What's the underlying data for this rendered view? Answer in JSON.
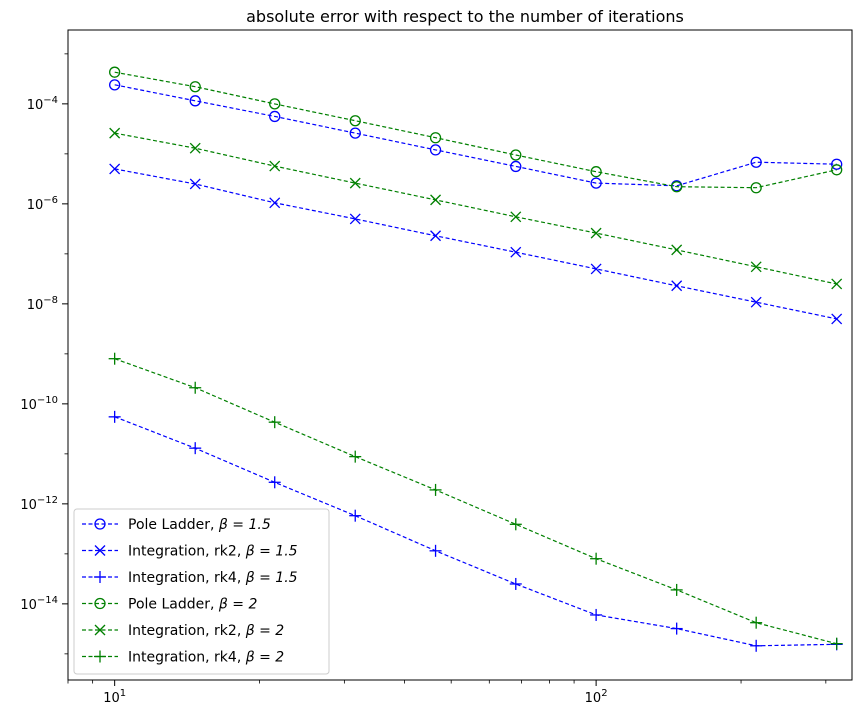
{
  "chart_data": {
    "type": "line",
    "title": "absolute error with respect to the number of iterations",
    "xlabel": "",
    "ylabel": "",
    "xscale": "log",
    "yscale": "log",
    "xlim": [
      8.0,
      340
    ],
    "ylim": [
      3e-16,
      0.003
    ],
    "xticks": [
      10,
      100
    ],
    "xtick_labels": [
      {
        "base": "10",
        "exp": "1"
      },
      {
        "base": "10",
        "exp": "2"
      }
    ],
    "yticks": [
      1e-14,
      1e-12,
      1e-10,
      1e-08,
      1e-06,
      0.0001
    ],
    "ytick_labels": [
      {
        "base": "10",
        "exp": "−14"
      },
      {
        "base": "10",
        "exp": "−12"
      },
      {
        "base": "10",
        "exp": "−10"
      },
      {
        "base": "10",
        "exp": "−8"
      },
      {
        "base": "10",
        "exp": "−6"
      },
      {
        "base": "10",
        "exp": "−4"
      }
    ],
    "grid": false,
    "legend_position": "lower-left",
    "x": [
      10,
      14.7,
      21.5,
      31.6,
      46.4,
      68.1,
      100,
      147,
      215,
      316
    ],
    "series": [
      {
        "name": "Pole Ladder, ",
        "beta_label": "β = 1.5",
        "color": "#0000ff",
        "marker": "circle",
        "values": [
          0.00024,
          0.000115,
          5.6e-05,
          2.6e-05,
          1.2e-05,
          5.6e-06,
          2.6e-06,
          2.3e-06,
          6.8e-06,
          6.2e-06
        ]
      },
      {
        "name": "Integration, rk2, ",
        "beta_label": "β = 1.5",
        "color": "#0000ff",
        "marker": "x",
        "values": [
          5e-06,
          2.5e-06,
          1.05e-06,
          5e-07,
          2.3e-07,
          1.08e-07,
          5e-08,
          2.3e-08,
          1.08e-08,
          5e-09
        ]
      },
      {
        "name": "Integration, rk4, ",
        "beta_label": "β = 1.5",
        "color": "#0000ff",
        "marker": "plus",
        "values": [
          5.5e-11,
          1.3e-11,
          2.7e-12,
          5.8e-13,
          1.15e-13,
          2.5e-14,
          6e-15,
          3.2e-15,
          1.45e-15,
          1.55e-15
        ]
      },
      {
        "name": "Pole Ladder, ",
        "beta_label": "β = 2",
        "color": "#008000",
        "marker": "circle",
        "values": [
          0.00043,
          0.00022,
          0.0001,
          4.6e-05,
          2.1e-05,
          9.5e-06,
          4.4e-06,
          2.2e-06,
          2.1e-06,
          4.8e-06
        ]
      },
      {
        "name": "Integration, rk2, ",
        "beta_label": "β = 2",
        "color": "#008000",
        "marker": "x",
        "values": [
          2.6e-05,
          1.3e-05,
          5.7e-06,
          2.6e-06,
          1.2e-06,
          5.5e-07,
          2.6e-07,
          1.2e-07,
          5.5e-08,
          2.5e-08
        ]
      },
      {
        "name": "Integration, rk4, ",
        "beta_label": "β = 2",
        "color": "#008000",
        "marker": "plus",
        "values": [
          8e-10,
          2.1e-10,
          4.3e-11,
          8.8e-12,
          1.9e-12,
          3.9e-13,
          8e-14,
          1.9e-14,
          4.2e-15,
          1.6e-15
        ]
      }
    ]
  }
}
